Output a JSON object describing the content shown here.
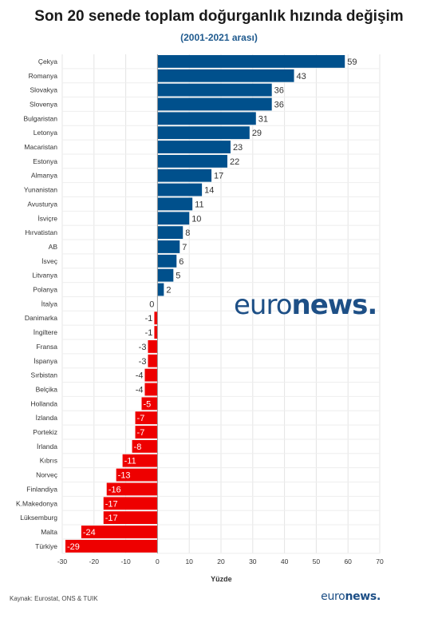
{
  "header": {
    "title": "Son 20 senede toplam doğurganlık hızında değişim",
    "subtitle": "(2001-2021 arası)"
  },
  "footer": {
    "source": "Kaynak: Eurostat, ONS & TUIK",
    "brand_light": "euro",
    "brand_bold": "news."
  },
  "watermark": {
    "brand_light": "euro",
    "brand_bold": "news."
  },
  "colors": {
    "positive": "#00508c",
    "negative": "#ee0000",
    "brand": "#1d4f86"
  },
  "chart_data": {
    "type": "bar",
    "orientation": "horizontal",
    "categories": [
      "Çekya",
      "Romanya",
      "Slovakya",
      "Slovenya",
      "Bulgaristan",
      "Letonya",
      "Macaristan",
      "Estonya",
      "Almanya",
      "Yunanistan",
      "Avusturya",
      "İsviçre",
      "Hırvatistan",
      "AB",
      "İsveç",
      "Litvanya",
      "Polanya",
      "İtalya",
      "Danimarka",
      "İngiltere",
      "Fransa",
      "İspanya",
      "Sırbistan",
      "Belçika",
      "Hollanda",
      "İzlanda",
      "Portekiz",
      "İrlanda",
      "Kıbrıs",
      "Norveç",
      "Finlandiya",
      "K.Makedonya",
      "Lüksemburg",
      "Malta",
      "Türkiye"
    ],
    "values": [
      59,
      43,
      36,
      36,
      31,
      29,
      23,
      22,
      17,
      14,
      11,
      10,
      8,
      7,
      6,
      5,
      2,
      0,
      -1,
      -1,
      -3,
      -3,
      -4,
      -4,
      -5,
      -7,
      -7,
      -8,
      -11,
      -13,
      -16,
      -17,
      -17,
      -24,
      -29
    ],
    "xlabel": "Yüzde",
    "xlim": [
      -30,
      70
    ],
    "xticks": [
      -30,
      -20,
      -10,
      0,
      10,
      20,
      30,
      40,
      50,
      60,
      70
    ],
    "grid": true
  }
}
